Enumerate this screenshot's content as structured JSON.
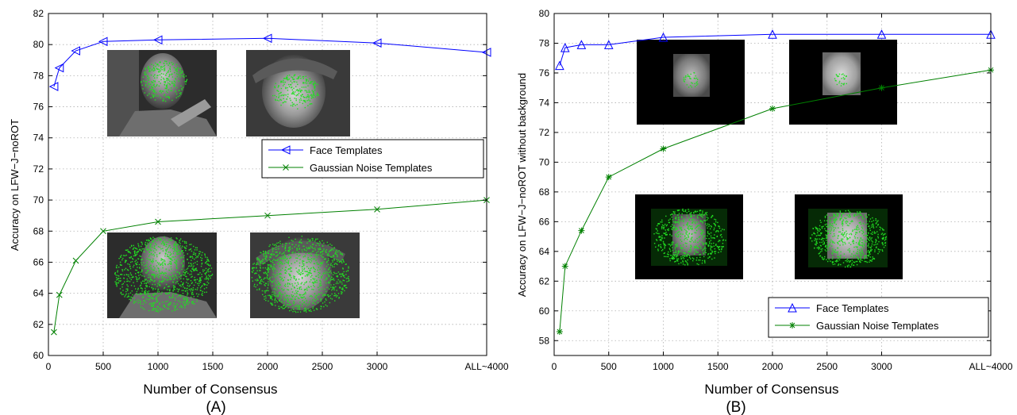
{
  "colors": {
    "face": "#0000ff",
    "noise": "#008000",
    "grid": "#b0b0b0"
  },
  "chart_data": [
    {
      "type": "line",
      "caption": "(A)",
      "xlabel": "Number of Consensus",
      "ylabel": "Accuracy on LFW−J−noROT",
      "xlim": [
        0,
        4000
      ],
      "ylim": [
        60,
        82
      ],
      "xticks": [
        0,
        500,
        1000,
        1500,
        2000,
        2500,
        3000,
        4000
      ],
      "xtick_labels": [
        "0",
        "500",
        "1000",
        "1500",
        "2000",
        "2500",
        "3000",
        "ALL~4000"
      ],
      "yticks": [
        60,
        62,
        64,
        66,
        68,
        70,
        72,
        74,
        76,
        78,
        80,
        82
      ],
      "grid": true,
      "legend_position": "middle-right",
      "series": [
        {
          "name": "Face Templates",
          "marker": "triangle-left",
          "x": [
            50,
            100,
            250,
            500,
            1000,
            2000,
            3000,
            4000
          ],
          "y": [
            77.3,
            78.5,
            79.6,
            80.2,
            80.3,
            80.4,
            80.1,
            79.5
          ]
        },
        {
          "name": "Gaussian Noise Templates",
          "marker": "x",
          "x": [
            50,
            100,
            250,
            500,
            1000,
            2000,
            3000,
            4000
          ],
          "y": [
            61.5,
            63.9,
            66.1,
            68.0,
            68.6,
            69.0,
            69.4,
            70.0
          ]
        }
      ]
    },
    {
      "type": "line",
      "caption": "(B)",
      "xlabel": "Number of Consensus",
      "ylabel": "Accuracy on LFW−J−noROT without background",
      "xlim": [
        0,
        4000
      ],
      "ylim": [
        57,
        80
      ],
      "xticks": [
        0,
        500,
        1000,
        1500,
        2000,
        2500,
        3000,
        4000
      ],
      "xtick_labels": [
        "0",
        "500",
        "1000",
        "1500",
        "2000",
        "2500",
        "3000",
        "ALL~4000"
      ],
      "yticks": [
        58,
        60,
        62,
        64,
        66,
        68,
        70,
        72,
        74,
        76,
        78,
        80
      ],
      "grid": true,
      "legend_position": "bottom-right",
      "series": [
        {
          "name": "Face Templates",
          "marker": "triangle-up",
          "x": [
            50,
            100,
            250,
            500,
            1000,
            2000,
            3000,
            4000
          ],
          "y": [
            76.5,
            77.7,
            77.9,
            77.9,
            78.4,
            78.6,
            78.6,
            78.6
          ]
        },
        {
          "name": "Gaussian Noise Templates",
          "marker": "asterisk",
          "x": [
            50,
            100,
            250,
            500,
            1000,
            2000,
            3000,
            4000
          ],
          "y": [
            58.6,
            63.0,
            65.4,
            69.0,
            70.9,
            73.6,
            75.0,
            76.2
          ]
        }
      ]
    }
  ]
}
